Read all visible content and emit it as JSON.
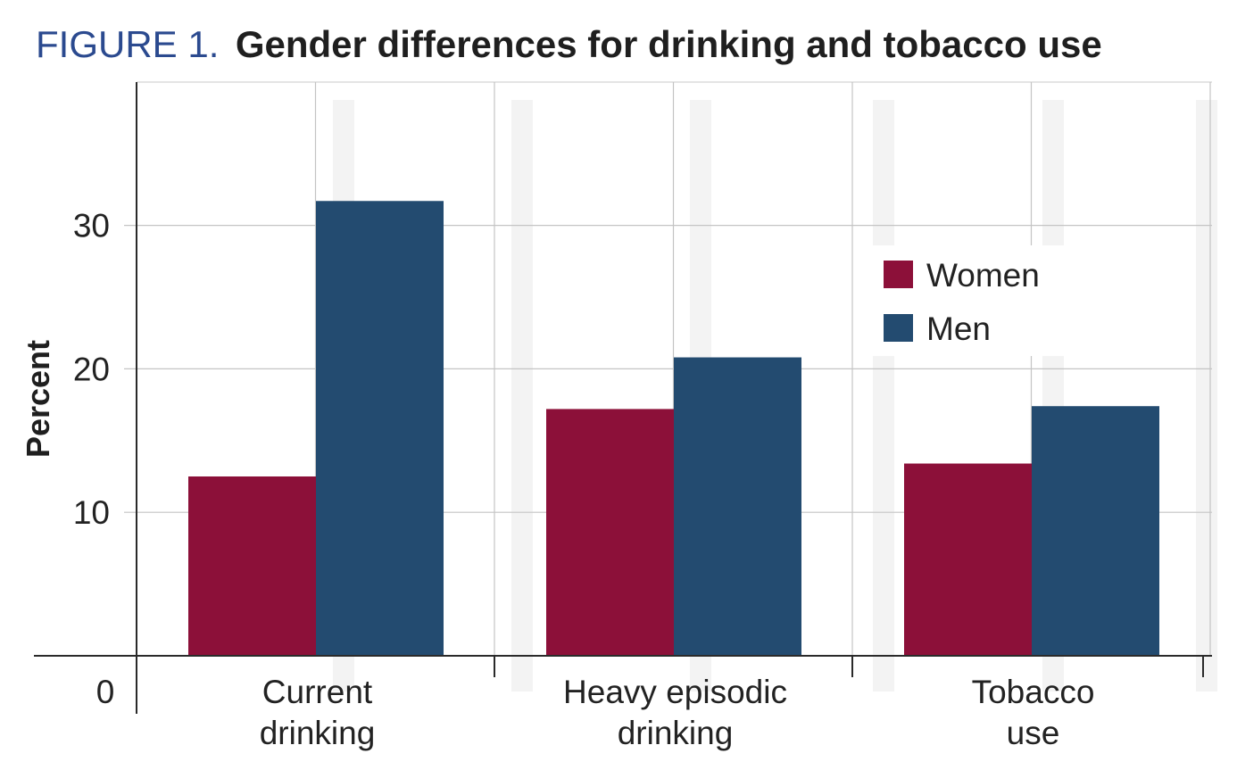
{
  "figure": {
    "label": "FIGURE  1.",
    "heading": "Gender differences for drinking and tobacco use"
  },
  "colors": {
    "women": "#8c1039",
    "men": "#234b70",
    "grid": "#c4c4c4",
    "axis": "#2a2a2a",
    "label_blue": "#2b4a8f"
  },
  "legend": {
    "items": [
      {
        "label": "Women",
        "color": "#8c1039"
      },
      {
        "label": "Men",
        "color": "#234b70"
      }
    ],
    "placement": "upper-right"
  },
  "chart_data": {
    "type": "bar",
    "title": "Gender differences for drinking and tobacco use",
    "xlabel": "",
    "ylabel": "Percent",
    "ylim": [
      0,
      40
    ],
    "yticks": [
      10,
      20,
      30
    ],
    "origin_label": "0",
    "grid": true,
    "categories": [
      {
        "lines": [
          "Current",
          "drinking"
        ]
      },
      {
        "lines": [
          "Heavy episodic",
          "drinking"
        ]
      },
      {
        "lines": [
          "Tobacco",
          "use"
        ]
      }
    ],
    "series": [
      {
        "name": "Women",
        "values": [
          12.5,
          17.2,
          13.4
        ]
      },
      {
        "name": "Men",
        "values": [
          31.7,
          20.8,
          17.4
        ]
      }
    ]
  }
}
